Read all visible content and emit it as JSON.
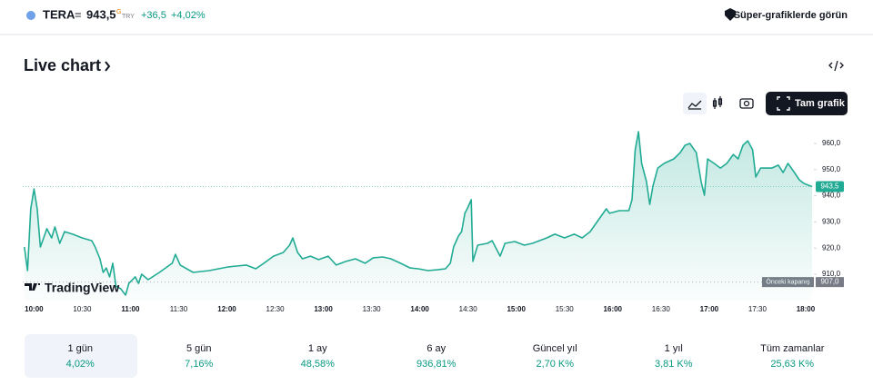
{
  "header": {
    "symbol": "TERA",
    "equals": "=",
    "price": "943,5",
    "price_flag": "G",
    "currency": "TRY",
    "change": "+36,5",
    "change_percent": "+4,02%",
    "promo": "Süper-grafiklerde görün"
  },
  "section_title": "Live chart",
  "full_chart_button": "Tam grafik",
  "watermark": "TradingView",
  "chart_data": {
    "type": "line",
    "color": "#22ab94",
    "x": [
      "09:54",
      "09:56",
      "09:58",
      "10:00",
      "10:02",
      "10:04",
      "10:06",
      "10:08",
      "10:11",
      "10:13",
      "10:16",
      "10:19",
      "10:24",
      "10:30",
      "10:36",
      "10:38",
      "10:41",
      "10:43",
      "10:45",
      "10:47",
      "10:49",
      "10:51",
      "10:54",
      "10:57",
      "10:59",
      "11:03",
      "11:05",
      "11:07",
      "11:11",
      "11:18",
      "11:26",
      "11:28",
      "11:31",
      "11:39",
      "11:49",
      "12:01",
      "12:12",
      "12:18",
      "12:23",
      "12:29",
      "12:35",
      "12:39",
      "12:41",
      "12:44",
      "12:47",
      "12:52",
      "12:57",
      "13:03",
      "13:08",
      "13:14",
      "13:20",
      "13:26",
      "13:31",
      "13:37",
      "13:42",
      "13:48",
      "13:54",
      "13:59",
      "14:05",
      "14:11",
      "14:16",
      "14:19",
      "14:21",
      "14:24",
      "14:26",
      "14:28",
      "14:30",
      "14:32",
      "14:33",
      "14:36",
      "14:42",
      "14:45",
      "14:50",
      "14:53",
      "14:59",
      "15:05",
      "15:10",
      "15:19",
      "15:24",
      "15:30",
      "15:36",
      "15:41",
      "15:46",
      "15:50",
      "15:56",
      "15:58",
      "16:04",
      "16:10",
      "16:12",
      "16:14",
      "16:16",
      "16:18",
      "16:21",
      "16:23",
      "16:25",
      "16:28",
      "16:32",
      "16:38",
      "16:42",
      "16:45",
      "16:48",
      "16:52",
      "16:55",
      "16:57",
      "16:59",
      "17:03",
      "17:07",
      "17:11",
      "17:15",
      "17:18",
      "17:21",
      "17:24",
      "17:27",
      "17:29",
      "17:32",
      "17:39",
      "17:43",
      "17:46",
      "17:49",
      "17:53",
      "17:56",
      "17:59",
      "18:04"
    ],
    "values": [
      920.4,
      911.4,
      935.0,
      942.6,
      935.0,
      920.4,
      923.9,
      927.4,
      923.9,
      928.1,
      921.8,
      926.3,
      925.3,
      923.9,
      922.8,
      920.4,
      915.9,
      910.7,
      912.4,
      909.0,
      914.2,
      905.5,
      904.4,
      902.0,
      906.5,
      909.0,
      906.5,
      910.0,
      907.9,
      910.7,
      914.2,
      917.6,
      913.5,
      910.7,
      911.4,
      912.8,
      913.5,
      912.1,
      914.2,
      916.9,
      918.3,
      921.1,
      923.9,
      918.3,
      915.9,
      916.9,
      915.6,
      916.9,
      913.5,
      914.9,
      915.9,
      914.2,
      916.3,
      916.6,
      915.9,
      914.2,
      912.4,
      912.1,
      911.4,
      911.7,
      912.1,
      914.2,
      920.4,
      924.6,
      926.3,
      933.3,
      935.7,
      938.5,
      914.9,
      921.1,
      921.8,
      922.8,
      916.9,
      921.8,
      922.5,
      921.1,
      921.8,
      923.9,
      925.3,
      923.9,
      925.3,
      923.9,
      926.3,
      929.8,
      935.0,
      933.3,
      934.3,
      934.3,
      938.5,
      957.6,
      964.5,
      952.4,
      945.4,
      936.7,
      943.7,
      950.6,
      952.4,
      954.1,
      956.5,
      959.3,
      960.0,
      956.5,
      945.4,
      940.2,
      954.1,
      952.4,
      950.6,
      952.4,
      955.8,
      954.1,
      959.3,
      961.0,
      957.6,
      947.2,
      950.6,
      950.6,
      951.7,
      948.9,
      952.4,
      948.9,
      946.1,
      944.7,
      943.5
    ],
    "xlim": [
      "09:53",
      "18:04"
    ],
    "xticks": [
      "10:00",
      "10:30",
      "11:00",
      "11:30",
      "12:00",
      "12:30",
      "13:00",
      "13:30",
      "14:00",
      "14:30",
      "15:00",
      "15:30",
      "16:00",
      "16:30",
      "17:00",
      "17:30",
      "18:00"
    ],
    "ylim": [
      900,
      970
    ],
    "yticks": [
      {
        "value": 910,
        "label": "910,0"
      },
      {
        "value": 920,
        "label": "920,0"
      },
      {
        "value": 930,
        "label": "930,0"
      },
      {
        "value": 940,
        "label": "940,0"
      },
      {
        "value": 950,
        "label": "950,0"
      },
      {
        "value": 960,
        "label": "960,0"
      }
    ],
    "previous_close": {
      "name": "Önceki kapanış",
      "value": 907,
      "label": "907,0"
    },
    "last_value": {
      "value": 943.5,
      "label": "943,5"
    }
  },
  "periods": [
    {
      "label": "1 gün",
      "change": "4,02%"
    },
    {
      "label": "5 gün",
      "change": "7,16%"
    },
    {
      "label": "1 ay",
      "change": "48,58%"
    },
    {
      "label": "6 ay",
      "change": "936,81%"
    },
    {
      "label": "Güncel yıl",
      "change": "2,70 K%"
    },
    {
      "label": "1 yıl",
      "change": "3,81 K%"
    },
    {
      "label": "Tüm zamanlar",
      "change": "25,63 K%"
    }
  ]
}
